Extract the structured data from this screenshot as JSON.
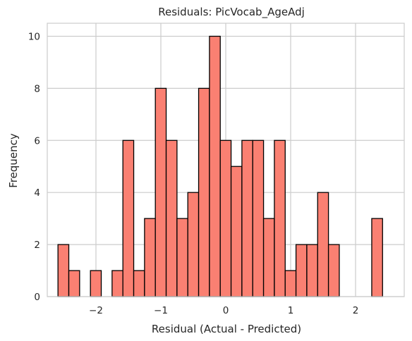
{
  "chart_data": {
    "type": "bar",
    "title": "Residuals: PicVocab_AgeAdj",
    "xlabel": "Residual (Actual - Predicted)",
    "ylabel": "Frequency",
    "xlim": [
      -2.75,
      2.75
    ],
    "ylim": [
      0,
      10.5
    ],
    "xticks": [
      -2,
      -1,
      0,
      1,
      2
    ],
    "xtick_labels": [
      "−2",
      "−1",
      "0",
      "1",
      "2"
    ],
    "yticks": [
      0,
      2,
      4,
      6,
      8,
      10
    ],
    "ytick_labels": [
      "0",
      "2",
      "4",
      "6",
      "8",
      "10"
    ],
    "grid": true,
    "bar_color": "#FA8072",
    "edge_color": "#000000",
    "grid_color": "#CCCCCC",
    "bins": {
      "start": -2.585,
      "width": 0.1667,
      "counts": [
        2,
        1,
        0,
        1,
        0,
        1,
        6,
        1,
        3,
        8,
        6,
        3,
        4,
        8,
        10,
        6,
        5,
        6,
        6,
        3,
        6,
        1,
        2,
        2,
        4,
        2,
        0,
        0,
        0,
        3
      ]
    }
  }
}
